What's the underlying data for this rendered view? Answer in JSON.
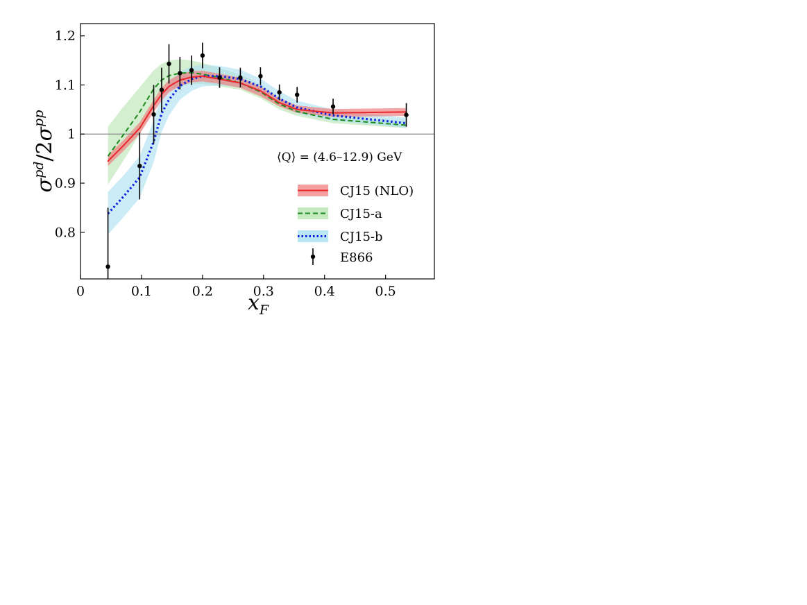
{
  "chart_data": {
    "type": "line",
    "xlabel_var": "x",
    "xlabel_sub": "F",
    "ylabel": {
      "num_sym": "σ",
      "num_sup": "pd",
      "slash": "/",
      "den_pre": "2",
      "den_sym": "σ",
      "den_sup": "pp"
    },
    "xlim": [
      0,
      0.58
    ],
    "ylim": [
      0.705,
      1.225
    ],
    "x_ticks": [
      0,
      0.1,
      0.2,
      0.3,
      0.4,
      0.5
    ],
    "x_tick_labels": [
      "0",
      "0.1",
      "0.2",
      "0.3",
      "0.4",
      "0.5"
    ],
    "y_ticks": [
      0.8,
      0.9,
      1.0,
      1.1,
      1.2
    ],
    "y_tick_labels": [
      "0.8",
      "0.9",
      "1",
      "1.1",
      "1.2"
    ],
    "reference_line_y": 1.0,
    "annotation": "⟨Q⟩ = (4.6–12.9) GeV",
    "legend_position": "lower-right",
    "grid": false,
    "series": [
      {
        "name": "CJ15 (NLO)",
        "style": "solid-band",
        "color": "#e8262c",
        "band_color": "#f08080",
        "x": [
          0.045,
          0.07,
          0.097,
          0.12,
          0.133,
          0.145,
          0.163,
          0.182,
          0.2,
          0.228,
          0.262,
          0.295,
          0.326,
          0.355,
          0.414,
          0.534
        ],
        "y": [
          0.945,
          0.976,
          1.012,
          1.058,
          1.081,
          1.097,
          1.11,
          1.116,
          1.118,
          1.112,
          1.104,
          1.088,
          1.064,
          1.05,
          1.043,
          1.045
        ],
        "y_lo": [
          0.935,
          0.965,
          1.0,
          1.045,
          1.068,
          1.085,
          1.098,
          1.105,
          1.107,
          1.102,
          1.094,
          1.077,
          1.056,
          1.043,
          1.035,
          1.037
        ],
        "y_hi": [
          0.957,
          0.987,
          1.024,
          1.07,
          1.094,
          1.11,
          1.122,
          1.128,
          1.129,
          1.123,
          1.115,
          1.097,
          1.073,
          1.058,
          1.051,
          1.053
        ]
      },
      {
        "name": "CJ15-a",
        "style": "dashed-band",
        "color": "#1e8a1e",
        "band_color": "#b8e5b0",
        "x": [
          0.045,
          0.07,
          0.097,
          0.12,
          0.133,
          0.145,
          0.163,
          0.182,
          0.2,
          0.228,
          0.262,
          0.295,
          0.326,
          0.355,
          0.414,
          0.534
        ],
        "y": [
          0.955,
          0.998,
          1.045,
          1.092,
          1.11,
          1.119,
          1.124,
          1.125,
          1.122,
          1.115,
          1.104,
          1.086,
          1.061,
          1.046,
          1.03,
          1.018
        ],
        "y_lo": [
          0.897,
          0.945,
          1.0,
          1.055,
          1.077,
          1.09,
          1.098,
          1.102,
          1.102,
          1.097,
          1.09,
          1.073,
          1.05,
          1.037,
          1.022,
          1.012
        ],
        "y_hi": [
          1.015,
          1.055,
          1.095,
          1.13,
          1.143,
          1.15,
          1.152,
          1.15,
          1.145,
          1.134,
          1.121,
          1.101,
          1.074,
          1.058,
          1.04,
          1.026
        ]
      },
      {
        "name": "CJ15-b",
        "style": "dotted-band",
        "color": "#0a1ee0",
        "band_color": "#a8def2",
        "x": [
          0.045,
          0.07,
          0.097,
          0.12,
          0.133,
          0.145,
          0.163,
          0.182,
          0.2,
          0.228,
          0.262,
          0.295,
          0.326,
          0.355,
          0.414,
          0.534
        ],
        "y": [
          0.838,
          0.872,
          0.912,
          0.985,
          1.042,
          1.07,
          1.098,
          1.112,
          1.118,
          1.118,
          1.112,
          1.097,
          1.072,
          1.054,
          1.038,
          1.022
        ],
        "y_lo": [
          0.795,
          0.83,
          0.87,
          0.943,
          1.004,
          1.038,
          1.07,
          1.088,
          1.097,
          1.099,
          1.095,
          1.081,
          1.058,
          1.042,
          1.027,
          1.013
        ],
        "y_hi": [
          0.882,
          0.915,
          0.955,
          1.028,
          1.081,
          1.104,
          1.127,
          1.138,
          1.141,
          1.139,
          1.131,
          1.113,
          1.087,
          1.068,
          1.05,
          1.033
        ]
      },
      {
        "name": "E866",
        "style": "points",
        "color": "#000000",
        "x": [
          0.045,
          0.097,
          0.12,
          0.133,
          0.145,
          0.163,
          0.182,
          0.2,
          0.228,
          0.262,
          0.295,
          0.326,
          0.355,
          0.414,
          0.534
        ],
        "y": [
          0.73,
          0.935,
          1.04,
          1.09,
          1.143,
          1.124,
          1.13,
          1.16,
          1.115,
          1.115,
          1.118,
          1.085,
          1.08,
          1.056,
          1.039
        ],
        "y_err": [
          0.12,
          0.068,
          0.06,
          0.045,
          0.04,
          0.033,
          0.03,
          0.026,
          0.021,
          0.02,
          0.018,
          0.016,
          0.016,
          0.016,
          0.024
        ]
      }
    ]
  }
}
